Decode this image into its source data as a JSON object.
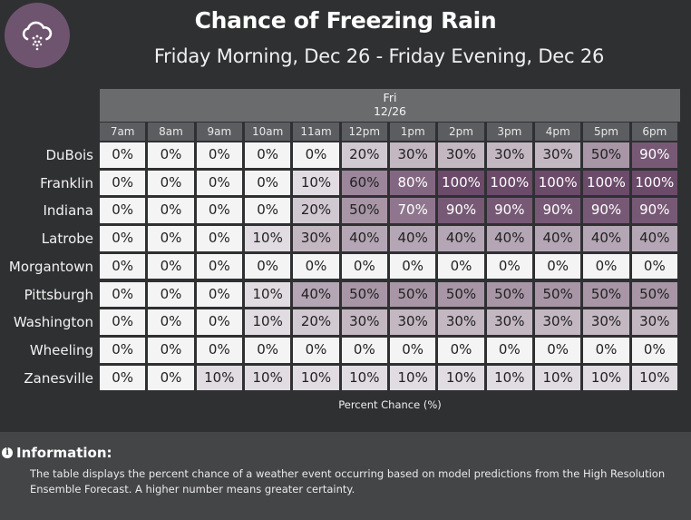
{
  "header": {
    "icon": "freezing-rain-cloud-icon",
    "title": "Chance of Freezing Rain",
    "subtitle": "Friday Morning, Dec 26 - Friday Evening, Dec 26"
  },
  "colors": {
    "background": "#2f3032",
    "icon_circle": "#6f5470",
    "scale_low": "#f4f4f4",
    "scale_high": "#6b4a6a",
    "info_background": "#444547"
  },
  "chart_data": {
    "type": "heatmap",
    "title": "Chance of Freezing Rain",
    "subtitle": "Friday Morning, Dec 26 - Friday Evening, Dec 26",
    "day_header": {
      "day": "Fri",
      "date": "12/26"
    },
    "columns": [
      "7am",
      "8am",
      "9am",
      "10am",
      "11am",
      "12pm",
      "1pm",
      "2pm",
      "3pm",
      "4pm",
      "5pm",
      "6pm"
    ],
    "rows": [
      "DuBois",
      "Franklin",
      "Indiana",
      "Latrobe",
      "Morgantown",
      "Pittsburgh",
      "Washington",
      "Wheeling",
      "Zanesville"
    ],
    "values": [
      [
        0,
        0,
        0,
        0,
        0,
        20,
        30,
        30,
        30,
        30,
        50,
        90
      ],
      [
        0,
        0,
        0,
        0,
        10,
        60,
        80,
        100,
        100,
        100,
        100,
        100
      ],
      [
        0,
        0,
        0,
        0,
        20,
        50,
        70,
        90,
        90,
        90,
        90,
        90
      ],
      [
        0,
        0,
        0,
        10,
        30,
        40,
        40,
        40,
        40,
        40,
        40,
        40
      ],
      [
        0,
        0,
        0,
        0,
        0,
        0,
        0,
        0,
        0,
        0,
        0,
        0
      ],
      [
        0,
        0,
        0,
        10,
        40,
        50,
        50,
        50,
        50,
        50,
        50,
        50
      ],
      [
        0,
        0,
        0,
        10,
        20,
        30,
        30,
        30,
        30,
        30,
        30,
        30
      ],
      [
        0,
        0,
        0,
        0,
        0,
        0,
        0,
        0,
        0,
        0,
        0,
        0
      ],
      [
        0,
        0,
        10,
        10,
        10,
        10,
        10,
        10,
        10,
        10,
        10,
        10
      ]
    ],
    "value_suffix": "%",
    "value_range": [
      0,
      100
    ],
    "xlabel": "Percent Chance (%)"
  },
  "info": {
    "heading": "Information:",
    "text": "The table displays the percent chance of a weather event occurring based on model predictions from the High Resolution Ensemble Forecast. A higher number means greater certainty."
  }
}
